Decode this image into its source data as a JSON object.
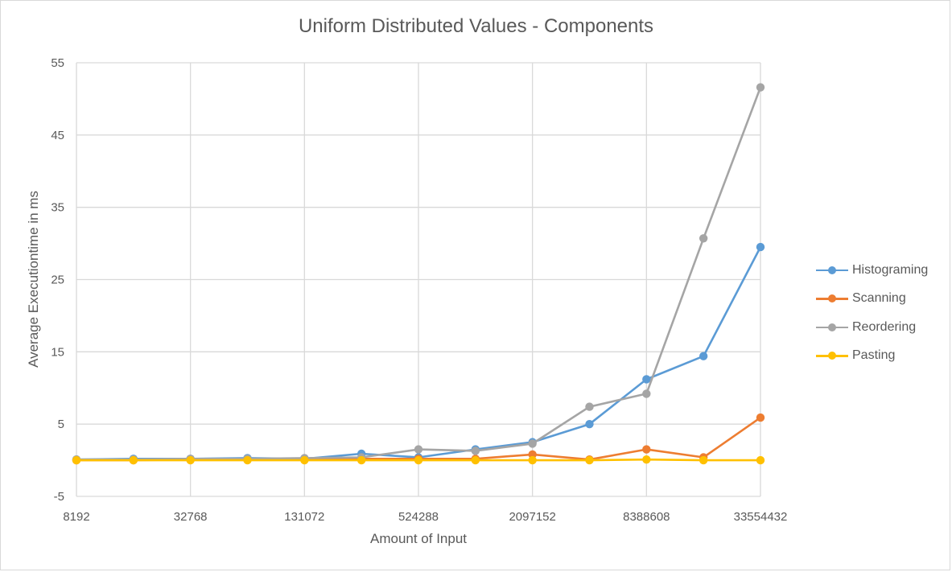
{
  "chart_data": {
    "type": "line",
    "title": "Uniform Distributed Values - Components",
    "xlabel": "Amount of Input",
    "ylabel": "Average Executiontime in ms",
    "x": [
      8192,
      16384,
      32768,
      65536,
      131072,
      262144,
      524288,
      1048576,
      2097152,
      4194304,
      8388608,
      16777216,
      33554432
    ],
    "x_tick_labels": [
      "8192",
      "32768",
      "131072",
      "524288",
      "2097152",
      "8388608",
      "33554432"
    ],
    "x_tick_values": [
      8192,
      32768,
      131072,
      524288,
      2097152,
      8388608,
      33554432
    ],
    "x_scale": "log",
    "ylim": [
      -5,
      55
    ],
    "y_ticks": [
      -5,
      5,
      15,
      25,
      35,
      45,
      55
    ],
    "grid": true,
    "legend_position": "right",
    "series": [
      {
        "name": "Histograming",
        "color": "#5b9bd5",
        "values": [
          0.1,
          0.2,
          0.2,
          0.3,
          0.2,
          0.9,
          0.4,
          1.5,
          2.5,
          5.0,
          11.2,
          14.4,
          29.5
        ]
      },
      {
        "name": "Scanning",
        "color": "#ed7d31",
        "values": [
          0.0,
          0.0,
          0.1,
          0.1,
          0.1,
          0.2,
          0.2,
          0.2,
          0.8,
          0.1,
          1.5,
          0.4,
          5.9
        ]
      },
      {
        "name": "Reordering",
        "color": "#a5a5a5",
        "values": [
          0.1,
          0.1,
          0.2,
          0.2,
          0.3,
          0.4,
          1.5,
          1.3,
          2.3,
          7.4,
          9.2,
          30.7,
          51.6
        ]
      },
      {
        "name": "Pasting",
        "color": "#ffc000",
        "values": [
          0.0,
          0.0,
          0.0,
          0.0,
          0.0,
          0.0,
          0.0,
          0.0,
          0.0,
          0.0,
          0.1,
          0.0,
          0.0
        ]
      }
    ]
  }
}
